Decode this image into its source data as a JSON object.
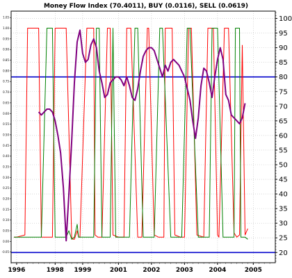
{
  "chart_data": {
    "type": "line",
    "title": "Money Flow Index (70.4011), BUY (0.0116), SELL (0.0619)",
    "x_range": [
      1996.0,
      2005.6
    ],
    "y_range_left": [
      -0.1,
      1.08
    ],
    "y_range_right": [
      16.5,
      102.5
    ],
    "x_ticks": [
      "1996",
      "1998",
      "1999",
      "2001",
      "2002",
      "2003",
      "2004",
      "2005"
    ],
    "x_tick_years": [
      1996.2,
      1997.6,
      1998.6,
      1999.9,
      2001.1,
      2002.3,
      2003.5,
      2004.8
    ],
    "right_ticks": [
      20,
      25,
      30,
      35,
      40,
      45,
      50,
      55,
      60,
      65,
      70,
      75,
      80,
      85,
      90,
      95,
      100
    ],
    "left_ticks": [
      "-0.05",
      "0.00",
      "0.05",
      "0.10",
      "0.15",
      "0.20",
      "0.25",
      "0.30",
      "0.35",
      "0.40",
      "0.45",
      "0.50",
      "0.55",
      "0.60",
      "0.65",
      "0.70",
      "0.75",
      "0.80",
      "0.85",
      "0.90",
      "0.95",
      "1.00",
      "1.05"
    ],
    "left_tick_values": [
      -0.05,
      0.0,
      0.05,
      0.1,
      0.15,
      0.2,
      0.25,
      0.3,
      0.35,
      0.4,
      0.45,
      0.5,
      0.55,
      0.6,
      0.65,
      0.7,
      0.75,
      0.8,
      0.85,
      0.9,
      0.95,
      1.0,
      1.05
    ],
    "reference_lines": [
      {
        "value": 20,
        "color": "#0000cc"
      },
      {
        "value": 80,
        "color": "#0000cc"
      }
    ],
    "colors": {
      "mfi": "#800080",
      "buy": "#008000",
      "sell": "#ff0000",
      "grid": "#c0c0c0",
      "axis": "#000000"
    },
    "series": [
      {
        "name": "MFI",
        "axis": "right",
        "color": "#800080",
        "x": [
          1997.0,
          1997.1,
          1997.2,
          1997.3,
          1997.4,
          1997.5,
          1997.6,
          1997.7,
          1997.8,
          1997.9,
          1998.0,
          1998.1,
          1998.2,
          1998.3,
          1998.4,
          1998.5,
          1998.6,
          1998.7,
          1998.8,
          1998.9,
          1999.0,
          1999.1,
          1999.2,
          1999.3,
          1999.4,
          1999.5,
          1999.6,
          1999.7,
          1999.8,
          1999.9,
          2000.0,
          2000.1,
          2000.2,
          2000.3,
          2000.4,
          2000.5,
          2000.6,
          2000.7,
          2000.8,
          2000.9,
          2001.0,
          2001.1,
          2001.2,
          2001.3,
          2001.4,
          2001.5,
          2001.6,
          2001.7,
          2001.8,
          2001.9,
          2002.0,
          2002.1,
          2002.2,
          2002.3,
          2002.4,
          2002.5,
          2002.6,
          2002.7,
          2002.8,
          2002.9,
          2003.0,
          2003.1,
          2003.2,
          2003.3,
          2003.4,
          2003.5,
          2003.6,
          2003.7,
          2003.8,
          2003.9,
          2004.0,
          2004.1,
          2004.2,
          2004.3,
          2004.4,
          2004.5
        ],
        "y": [
          68,
          67,
          68,
          69,
          69,
          68,
          65,
          60,
          54,
          42,
          24,
          40,
          58,
          78,
          92,
          96,
          88,
          85,
          86,
          91,
          93,
          90,
          82,
          78,
          73,
          74,
          78,
          79,
          80,
          80,
          79,
          77,
          80,
          77,
          73,
          72,
          76,
          82,
          87,
          89,
          90,
          90,
          89,
          86,
          83,
          80,
          84,
          82,
          85,
          86,
          85,
          84,
          82,
          80,
          76,
          72,
          65,
          59,
          66,
          77,
          83,
          82,
          78,
          73,
          80,
          86,
          90,
          86,
          74,
          72,
          67,
          66,
          65,
          64,
          66,
          71
        ]
      },
      {
        "name": "SELL",
        "axis": "left",
        "color": "#ff0000",
        "x": [
          1996.1,
          1996.2,
          1996.5,
          1996.6,
          1997.0,
          1997.1,
          1997.5,
          1997.6,
          1998.0,
          1998.2,
          1998.25,
          1998.3,
          1998.4,
          1998.45,
          1998.5,
          1998.75,
          1999.0,
          1999.05,
          1999.15,
          1999.3,
          1999.5,
          1999.6,
          1999.7,
          1999.9,
          2000.1,
          2000.2,
          2000.35,
          2000.6,
          2000.75,
          2000.95,
          2001.0,
          2001.2,
          2001.35,
          2001.55,
          2001.6,
          2001.85,
          2001.95,
          2002.15,
          2002.3,
          2002.45,
          2002.55,
          2002.75,
          2003.0,
          2003.15,
          2003.35,
          2003.5,
          2003.55,
          2003.75,
          2003.9,
          2004.1,
          2004.2,
          2004.3,
          2004.4,
          2004.5,
          2004.6
        ],
        "y": [
          0.02,
          0.02,
          0.03,
          1.0,
          1.0,
          0.02,
          0.02,
          1.0,
          1.0,
          0.02,
          0.01,
          0.01,
          0.05,
          0.02,
          0.02,
          1.0,
          1.0,
          0.03,
          0.02,
          0.02,
          1.0,
          1.0,
          0.03,
          0.02,
          0.02,
          1.0,
          1.0,
          0.02,
          0.02,
          1.0,
          1.0,
          0.03,
          0.02,
          0.02,
          1.0,
          1.0,
          0.03,
          0.02,
          0.02,
          1.0,
          1.0,
          0.03,
          0.02,
          1.0,
          1.0,
          0.03,
          0.02,
          1.0,
          1.0,
          0.04,
          0.02,
          0.03,
          0.92,
          0.03,
          0.06
        ]
      },
      {
        "name": "BUY",
        "axis": "left",
        "color": "#008000",
        "x": [
          1996.1,
          1996.7,
          1997.1,
          1997.3,
          1997.5,
          1997.6,
          1998.0,
          1998.1,
          1998.2,
          1998.3,
          1998.4,
          1998.45,
          1998.5,
          1999.0,
          1999.1,
          1999.2,
          1999.3,
          1999.5,
          1999.6,
          1999.7,
          1999.8,
          2000.0,
          2000.3,
          2000.5,
          2000.6,
          2000.8,
          2001.0,
          2001.2,
          2001.4,
          2001.5,
          2001.8,
          2002.0,
          2002.2,
          2002.4,
          2002.5,
          2002.8,
          2003.0,
          2003.2,
          2003.3,
          2003.5,
          2003.7,
          2003.9,
          2004.1,
          2004.15,
          2004.3,
          2004.35,
          2004.5,
          2004.6
        ],
        "y": [
          0.02,
          0.02,
          0.02,
          1.0,
          1.0,
          0.02,
          0.02,
          0.05,
          0.01,
          0.02,
          0.08,
          0.02,
          0.02,
          0.02,
          1.0,
          1.0,
          0.02,
          0.02,
          0.02,
          1.0,
          0.02,
          0.02,
          0.02,
          1.0,
          1.0,
          0.02,
          0.02,
          0.02,
          1.0,
          1.0,
          0.02,
          0.02,
          0.02,
          1.0,
          1.0,
          0.02,
          0.02,
          0.02,
          1.0,
          1.0,
          0.02,
          0.02,
          0.02,
          1.0,
          1.0,
          0.02,
          0.02,
          0.01
        ]
      }
    ]
  }
}
